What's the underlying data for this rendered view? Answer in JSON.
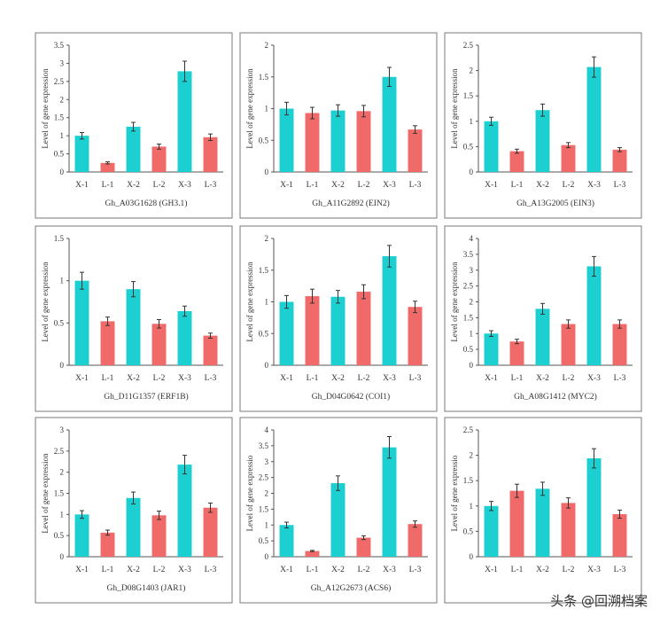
{
  "colors": {
    "X": "#1ccfd1",
    "L": "#f06a6a",
    "axis": "#555555",
    "frame": "#7a7a7a"
  },
  "shared": {
    "ylabel": "Level of gene expression",
    "categories": [
      "X-1",
      "L-1",
      "X-2",
      "L-2",
      "X-3",
      "L-3"
    ]
  },
  "watermark": "头条 @回溯档案",
  "chart_data": [
    {
      "type": "bar",
      "title": "Gh_A03G1628 (GH3.1)",
      "ylabel": "Level of gene expression",
      "categories": [
        "X-1",
        "L-1",
        "X-2",
        "L-2",
        "X-3",
        "L-3"
      ],
      "ylim": [
        0,
        3.5
      ],
      "yticks": [
        0,
        0.5,
        1,
        1.5,
        2,
        2.5,
        3,
        3.5
      ],
      "yticklabels": [
        "0",
        "0.5",
        "1",
        "1.5",
        "2",
        "2.5",
        "3",
        "3.5"
      ],
      "values": [
        1.0,
        0.25,
        1.25,
        0.7,
        2.78,
        0.96
      ],
      "errors": [
        0.09,
        0.03,
        0.12,
        0.07,
        0.28,
        0.09
      ]
    },
    {
      "type": "bar",
      "title": "Gh_A11G2892 (EIN2)",
      "ylabel": "Level of gene expression",
      "categories": [
        "X-1",
        "L-1",
        "X-2",
        "L-2",
        "X-3",
        "L-3"
      ],
      "ylim": [
        0,
        2
      ],
      "yticks": [
        0,
        0.5,
        1,
        1.5,
        2
      ],
      "yticklabels": [
        "0",
        "0.5",
        "1",
        "1.5",
        "2"
      ],
      "values": [
        1.0,
        0.93,
        0.97,
        0.96,
        1.5,
        0.67
      ],
      "errors": [
        0.1,
        0.09,
        0.09,
        0.09,
        0.15,
        0.06
      ]
    },
    {
      "type": "bar",
      "title": "Gh_A13G2005 (EIN3)",
      "ylabel": "Level of gene expression",
      "categories": [
        "X-1",
        "L-1",
        "X-2",
        "L-2",
        "X-3",
        "L-3"
      ],
      "ylim": [
        0,
        2.5
      ],
      "yticks": [
        0,
        0.5,
        1,
        1.5,
        2,
        2.5
      ],
      "yticklabels": [
        "0",
        "0.5",
        "1",
        "1.5",
        "2",
        "2.5"
      ],
      "values": [
        1.0,
        0.41,
        1.22,
        0.53,
        2.07,
        0.44
      ],
      "errors": [
        0.08,
        0.04,
        0.12,
        0.05,
        0.2,
        0.04
      ]
    },
    {
      "type": "bar",
      "title": "Gh_D11G1357 (ERF1B)",
      "ylabel": "Level of gene expression",
      "categories": [
        "X-1",
        "L-1",
        "X-2",
        "L-2",
        "X-3",
        "L-3"
      ],
      "ylim": [
        0,
        1.5
      ],
      "yticks": [
        0,
        0.5,
        1,
        1.5
      ],
      "yticklabels": [
        "0",
        "0.5",
        "1",
        "1.5"
      ],
      "values": [
        1.0,
        0.52,
        0.9,
        0.49,
        0.64,
        0.35
      ],
      "errors": [
        0.1,
        0.05,
        0.09,
        0.05,
        0.06,
        0.03
      ]
    },
    {
      "type": "bar",
      "title": "Gh_D04G0642 (COI1)",
      "ylabel": "Level of gene expression",
      "categories": [
        "X-1",
        "L-1",
        "X-2",
        "L-2",
        "X-3",
        "L-3"
      ],
      "ylim": [
        0,
        2
      ],
      "yticks": [
        0,
        0.5,
        1,
        1.5,
        2
      ],
      "yticklabels": [
        "0",
        "0.5",
        "1",
        "1.5",
        "2"
      ],
      "values": [
        1.0,
        1.09,
        1.08,
        1.16,
        1.72,
        0.92
      ],
      "errors": [
        0.1,
        0.11,
        0.1,
        0.11,
        0.17,
        0.09
      ]
    },
    {
      "type": "bar",
      "title": "Gh_A08G1412 (MYC2)",
      "ylabel": "Level of gene expression",
      "categories": [
        "X-1",
        "L-1",
        "X-2",
        "L-2",
        "X-3",
        "L-3"
      ],
      "ylim": [
        0,
        4
      ],
      "yticks": [
        0,
        0.5,
        1,
        1.5,
        2,
        2.5,
        3,
        3.5,
        4
      ],
      "yticklabels": [
        "0",
        "0.5",
        "1",
        "1.5",
        "2",
        "2.5",
        "3",
        "3.5",
        "4"
      ],
      "values": [
        1.0,
        0.75,
        1.78,
        1.3,
        3.12,
        1.3
      ],
      "errors": [
        0.09,
        0.07,
        0.17,
        0.13,
        0.31,
        0.13
      ]
    },
    {
      "type": "bar",
      "title": "Gh_D08G1403 (JAR1)",
      "ylabel": "Level of gene expression",
      "categories": [
        "X-1",
        "L-1",
        "X-2",
        "L-2",
        "X-3",
        "L-3"
      ],
      "ylim": [
        0,
        3
      ],
      "yticks": [
        0,
        0.5,
        1,
        1.5,
        2,
        2.5,
        3
      ],
      "yticklabels": [
        "0",
        "0.5",
        "1",
        "1.5",
        "2",
        "2.5",
        "3"
      ],
      "values": [
        1.0,
        0.57,
        1.39,
        0.98,
        2.18,
        1.16
      ],
      "errors": [
        0.09,
        0.06,
        0.14,
        0.1,
        0.22,
        0.11
      ]
    },
    {
      "type": "bar",
      "title": "Gh_A12G2673 (ACS6)",
      "ylabel": "Level of gene expressio",
      "categories": [
        "X-1",
        "L-1",
        "X-2",
        "L-2",
        "X-3",
        "L-3"
      ],
      "ylim": [
        0,
        4
      ],
      "yticks": [
        0,
        0.5,
        1,
        1.5,
        2,
        2.5,
        3,
        3.5,
        4
      ],
      "yticklabels": [
        "0",
        "0.5",
        "1",
        "1.5",
        "2",
        "2.5",
        "3",
        "3.5",
        "4"
      ],
      "values": [
        1.0,
        0.18,
        2.32,
        0.6,
        3.45,
        1.03
      ],
      "errors": [
        0.09,
        0.02,
        0.23,
        0.06,
        0.34,
        0.1
      ]
    },
    {
      "type": "bar",
      "title": "",
      "ylabel": "Level of gene expressio",
      "categories": [
        "X-1",
        "L-1",
        "X-2",
        "L-2",
        "X-3",
        "L-3"
      ],
      "ylim": [
        0,
        2.5
      ],
      "yticks": [
        0,
        0.5,
        1,
        1.5,
        2,
        2.5
      ],
      "yticklabels": [
        "0",
        "0.5",
        "1",
        "1.5",
        "2",
        "2.5"
      ],
      "values": [
        1.0,
        1.3,
        1.34,
        1.06,
        1.94,
        0.84
      ],
      "errors": [
        0.09,
        0.13,
        0.13,
        0.1,
        0.19,
        0.08
      ]
    }
  ]
}
